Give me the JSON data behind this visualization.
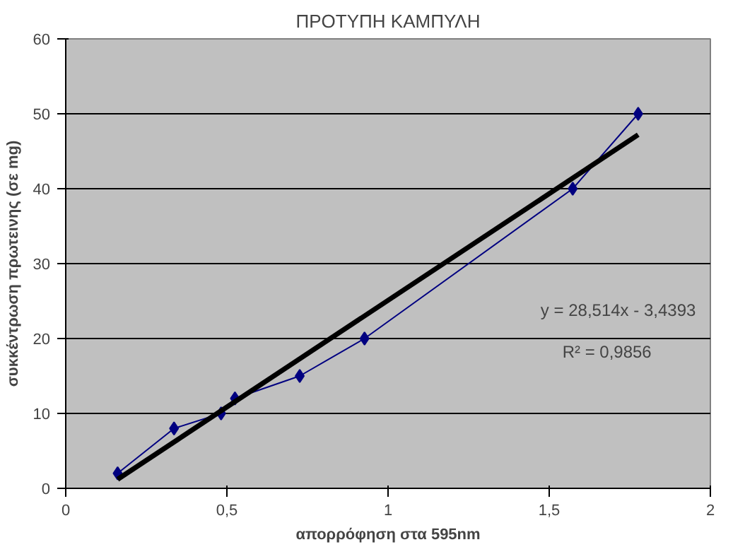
{
  "chart_data": {
    "type": "line",
    "title": "ΠΡΟΤΥΠΗ ΚΑΜΠΥΛΗ",
    "xlabel": "απορρόφηση στα 595nm",
    "ylabel": "συκκέντρωση πρωτεινης (σε mg)",
    "x": [
      0.161,
      0.336,
      0.482,
      0.525,
      0.726,
      0.927,
      1.573,
      1.776
    ],
    "series": [
      {
        "color": "#000080",
        "values": [
          2,
          8,
          10,
          12,
          15,
          20,
          40,
          50
        ],
        "marker": "diamond"
      },
      {
        "type": "line",
        "color": "#000000",
        "x": [
          0.161,
          1.776
        ],
        "values": [
          1.2,
          47.2
        ],
        "marker": "none"
      }
    ],
    "annotations": [
      "y = 28,514x  - 3,4393",
      "R² = 0,9856"
    ],
    "xlim": [
      0,
      2
    ],
    "ylim": [
      0,
      60
    ],
    "xticks": [
      0,
      {
        "value": 0.5,
        "label": "0,5"
      },
      1,
      {
        "value": 1.5,
        "label": "1,5"
      },
      2
    ],
    "yticks": [
      0,
      10,
      20,
      30,
      40,
      50,
      60
    ],
    "grid": "y"
  }
}
